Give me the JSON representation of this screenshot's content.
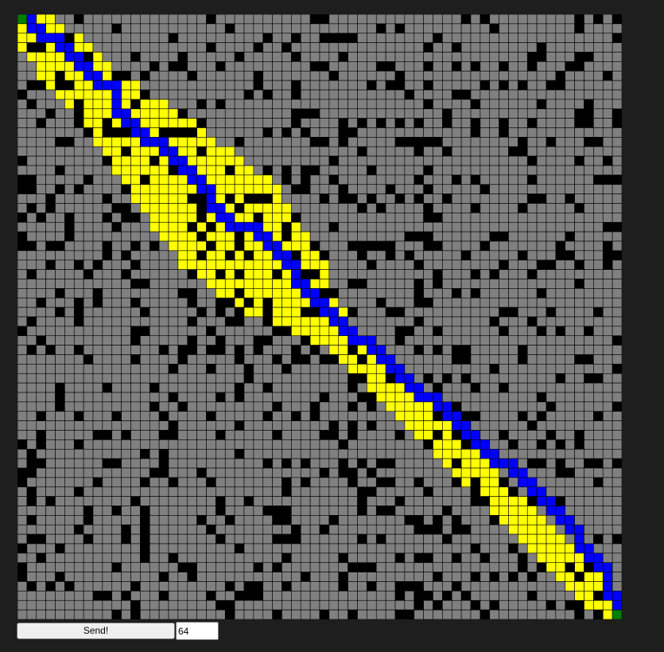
{
  "controls": {
    "send_label": "Send!",
    "size_value": "64"
  },
  "maze": {
    "size": 64,
    "colors": {
      "background": "#1e1e1e",
      "open": "#808080",
      "wall": "#000000",
      "explored": "#ffff00",
      "path": "#0000ff",
      "endpoint": "#008000",
      "gridline": "#000000"
    },
    "start": [
      0,
      0
    ],
    "goal": [
      63,
      63
    ],
    "path_waypoints": [
      [
        0,
        0
      ],
      [
        1,
        1
      ],
      [
        3,
        2
      ],
      [
        9,
        7
      ],
      [
        10,
        10
      ],
      [
        14,
        13
      ],
      [
        20,
        20
      ],
      [
        24,
        22
      ],
      [
        29,
        28
      ],
      [
        31,
        30
      ],
      [
        36,
        34
      ],
      [
        38,
        36
      ],
      [
        43,
        40
      ],
      [
        45,
        42
      ],
      [
        48,
        45
      ],
      [
        51,
        47
      ],
      [
        53,
        49
      ],
      [
        55,
        51
      ],
      [
        57,
        53
      ],
      [
        59,
        56
      ],
      [
        62,
        59
      ],
      [
        62,
        61
      ],
      [
        63,
        63
      ]
    ],
    "explored_band_halfwidth": [
      [
        0,
        3
      ],
      [
        9,
        5
      ],
      [
        18,
        8
      ],
      [
        22,
        9
      ],
      [
        28,
        7
      ],
      [
        32,
        3
      ],
      [
        36,
        2
      ],
      [
        63,
        2
      ]
    ]
  }
}
